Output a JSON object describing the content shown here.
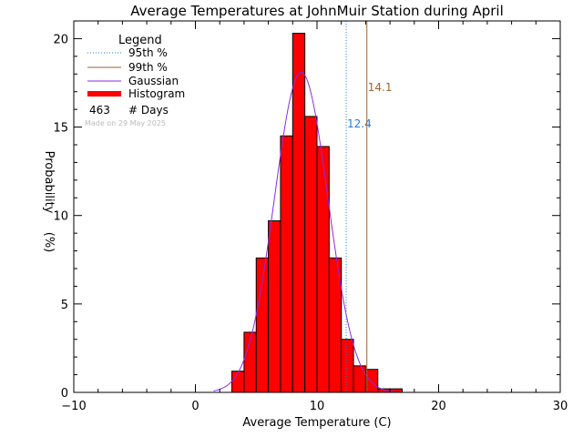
{
  "chart_data": {
    "type": "bar",
    "title": "Average Temperatures at JohnMuir Station during April",
    "xlabel": "Average Temperature (C)",
    "ylabel": "Probability (%)",
    "xlim": [
      -10,
      30
    ],
    "ylim": [
      0,
      21
    ],
    "xticks": [
      -10,
      0,
      10,
      20,
      30
    ],
    "yticks": [
      0,
      5,
      10,
      15,
      20
    ],
    "grid": false,
    "legend": {
      "title": "Legend",
      "placement": "top-left",
      "entries": [
        {
          "label": "95th %",
          "style": "dotted",
          "color": "#1f7fe0"
        },
        {
          "label": "99th %",
          "style": "solid",
          "color": "#a0622d"
        },
        {
          "label": "Gaussian",
          "style": "solid",
          "color": "#8a2be2"
        },
        {
          "label": "Histogram",
          "style": "thick",
          "color": "#ff0000"
        }
      ],
      "days_count": "463",
      "days_label": "# Days"
    },
    "watermark": "Made on 29 May 2025",
    "bin_width": 1,
    "bins": [
      {
        "x0": 3,
        "value": 1.2
      },
      {
        "x0": 4,
        "value": 3.4
      },
      {
        "x0": 5,
        "value": 7.6
      },
      {
        "x0": 6,
        "value": 9.7
      },
      {
        "x0": 7,
        "value": 14.5
      },
      {
        "x0": 8,
        "value": 20.3
      },
      {
        "x0": 9,
        "value": 15.6
      },
      {
        "x0": 10,
        "value": 13.9
      },
      {
        "x0": 11,
        "value": 7.6
      },
      {
        "x0": 12,
        "value": 3.0
      },
      {
        "x0": 13,
        "value": 1.5
      },
      {
        "x0": 14,
        "value": 1.3
      },
      {
        "x0": 15,
        "value": 0.2
      },
      {
        "x0": 16,
        "value": 0.2
      }
    ],
    "gaussian": {
      "mean": 8.7,
      "sigma": 2.2,
      "peak": 18.1,
      "xmin": 1.5,
      "xmax": 16.5
    },
    "percentiles": [
      {
        "name": "95th %",
        "value": 12.4,
        "label": "12.4",
        "color": "#1f7fe0",
        "style": "dotted"
      },
      {
        "name": "99th %",
        "value": 14.1,
        "label": "14.1",
        "color": "#a0622d",
        "style": "solid"
      }
    ],
    "colors": {
      "histogram": "#ff0000",
      "gaussian": "#8a2be2",
      "axis": "#000000",
      "watermark": "#bbbbbb"
    }
  }
}
